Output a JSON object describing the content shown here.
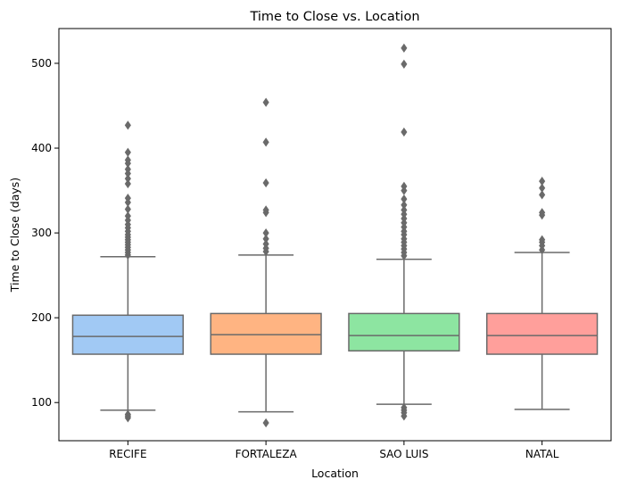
{
  "chart_data": {
    "type": "box",
    "title": "Time to Close vs. Location",
    "xlabel": "Location",
    "ylabel": "Time to Close (days)",
    "ylim": [
      55,
      541
    ],
    "yticks": [
      100,
      200,
      300,
      400,
      500
    ],
    "grid": false,
    "legend": "none",
    "categories": [
      "RECIFE",
      "FORTALEZA",
      "SAO LUIS",
      "NATAL"
    ],
    "colors": [
      "#a1c9f4",
      "#ffb482",
      "#8de5a1",
      "#ff9f9b"
    ],
    "line_color": "#6a6a6a",
    "boxes": [
      {
        "category": "RECIFE",
        "whisker_low": 91,
        "q1": 157,
        "median": 178,
        "q3": 203,
        "whisker_high": 272,
        "outliers": [
          82,
          84,
          86,
          274,
          277,
          280,
          283,
          286,
          289,
          292,
          295,
          298,
          302,
          306,
          310,
          315,
          320,
          328,
          336,
          341,
          358,
          364,
          370,
          375,
          382,
          386,
          395,
          427
        ]
      },
      {
        "category": "FORTALEZA",
        "whisker_low": 89,
        "q1": 157,
        "median": 180,
        "q3": 205,
        "whisker_high": 274,
        "outliers": [
          76,
          278,
          282,
          287,
          293,
          300,
          324,
          327,
          359,
          407,
          454
        ]
      },
      {
        "category": "SAO LUIS",
        "whisker_low": 98,
        "q1": 161,
        "median": 179,
        "q3": 205,
        "whisker_high": 269,
        "outliers": [
          84,
          88,
          91,
          94,
          273,
          277,
          281,
          285,
          289,
          293,
          298,
          302,
          307,
          312,
          317,
          322,
          327,
          333,
          340,
          350,
          355,
          419,
          499,
          518
        ]
      },
      {
        "category": "NATAL",
        "whisker_low": 92,
        "q1": 157,
        "median": 179,
        "q3": 205,
        "whisker_high": 277,
        "outliers": [
          280,
          285,
          289,
          292,
          321,
          324,
          345,
          353,
          361
        ]
      }
    ]
  }
}
